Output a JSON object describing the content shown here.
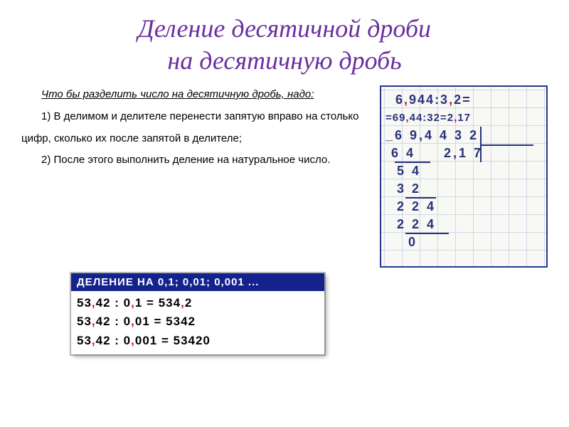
{
  "title": {
    "line1": "Деление десятичной дроби",
    "line2": "на десятичную дробь",
    "color": "#6a2f9e",
    "fontsize": 36
  },
  "intro": "Что бы разделить число на десятичную дробь, надо:",
  "rules": [
    "1)   В делимом и делителе перенести запятую вправо на столько цифр, сколько их после запятой в делителе;",
    "2)   После этого выполнить деление на натуральное число."
  ],
  "longdiv": {
    "top1": "6,944:3,2=",
    "top2": "=69,44:32=2,17",
    "dividend": "6 9,4 4",
    "divisor": "3 2",
    "quotient": "2,1 7",
    "steps": [
      {
        "text": "6 4",
        "pad": 1,
        "under": true
      },
      {
        "text": "5 4",
        "pad": 2,
        "under": false
      },
      {
        "text": "3 2",
        "pad": 2,
        "under": true
      },
      {
        "text": "2 2 4",
        "pad": 2,
        "under": false
      },
      {
        "text": "2 2 4",
        "pad": 2,
        "under": true
      },
      {
        "text": "0",
        "pad": 4,
        "under": false
      }
    ],
    "border_color": "#233a8a",
    "text_color": "#28337a",
    "grid_color": "rgba(140,160,210,0.35)",
    "cell": 25
  },
  "bluebox": {
    "header": "ДЕЛЕНИЕ НА  0,1;  0,01;  0,001 ...",
    "header_bg": "#14228e",
    "rows": [
      {
        "lhs": "53,42",
        "op": ":",
        "d": "0,1",
        "eq": "=",
        "rhs": "534,2"
      },
      {
        "lhs": "53,42",
        "op": ":",
        "d": "0,01",
        "eq": "=",
        "rhs": "5342"
      },
      {
        "lhs": "53,42",
        "op": ":",
        "d": "0,001",
        "eq": "=",
        "rhs": "53420"
      }
    ],
    "red": "#d11421"
  }
}
